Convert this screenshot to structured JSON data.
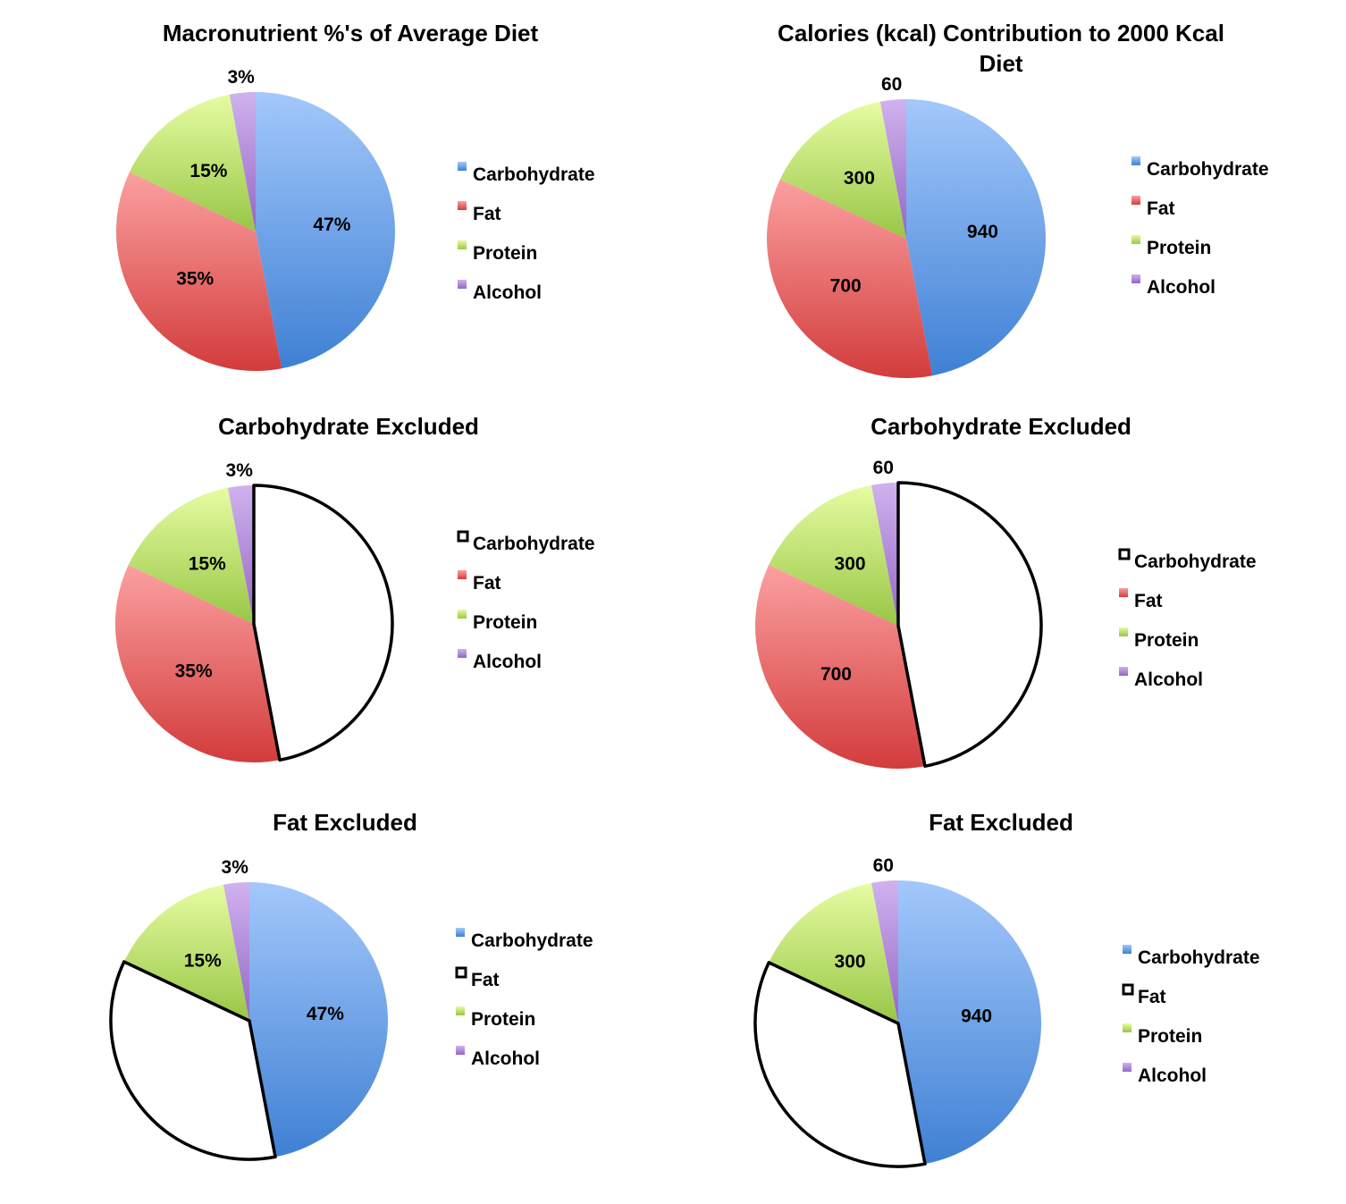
{
  "colors": {
    "Carbohydrate": [
      "#a3c8fb",
      "#3f80d4"
    ],
    "Fat": [
      "#fba0a0",
      "#d33c3c"
    ],
    "Protein": [
      "#e6fca2",
      "#98c646"
    ],
    "Alcohol": [
      "#d0b2ee",
      "#9466c4"
    ]
  },
  "chart_data": [
    {
      "type": "pie",
      "title": [
        "Macronutrient %'s of Average Diet"
      ],
      "categories": [
        "Carbohydrate",
        "Fat",
        "Protein",
        "Alcohol"
      ],
      "values": [
        47,
        35,
        15,
        3
      ],
      "labels": [
        "47%",
        "35%",
        "15%",
        "3%"
      ],
      "excluded": null,
      "legend": "right"
    },
    {
      "type": "pie",
      "title": [
        "Calories (kcal) Contribution to 2000 Kcal",
        "Diet"
      ],
      "categories": [
        "Carbohydrate",
        "Fat",
        "Protein",
        "Alcohol"
      ],
      "values": [
        940,
        700,
        300,
        60
      ],
      "labels": [
        "940",
        "700",
        "300",
        "60"
      ],
      "excluded": null,
      "legend": "right"
    },
    {
      "type": "pie",
      "title": [
        "Carbohydrate Excluded"
      ],
      "categories": [
        "Carbohydrate",
        "Fat",
        "Protein",
        "Alcohol"
      ],
      "values": [
        47,
        35,
        15,
        3
      ],
      "labels": [
        "",
        "35%",
        "15%",
        "3%"
      ],
      "excluded": "Carbohydrate",
      "legend": "right"
    },
    {
      "type": "pie",
      "title": [
        "Carbohydrate Excluded"
      ],
      "categories": [
        "Carbohydrate",
        "Fat",
        "Protein",
        "Alcohol"
      ],
      "values": [
        940,
        700,
        300,
        60
      ],
      "labels": [
        "",
        "700",
        "300",
        "60"
      ],
      "excluded": "Carbohydrate",
      "legend": "right"
    },
    {
      "type": "pie",
      "title": [
        "Fat Excluded"
      ],
      "categories": [
        "Carbohydrate",
        "Fat",
        "Protein",
        "Alcohol"
      ],
      "values": [
        47,
        35,
        15,
        3
      ],
      "labels": [
        "47%",
        "",
        "15%",
        "3%"
      ],
      "excluded": "Fat",
      "legend": "right"
    },
    {
      "type": "pie",
      "title": [
        "Fat Excluded"
      ],
      "categories": [
        "Carbohydrate",
        "Fat",
        "Protein",
        "Alcohol"
      ],
      "values": [
        940,
        700,
        300,
        60
      ],
      "labels": [
        "940",
        "",
        "300",
        "60"
      ],
      "excluded": "Fat",
      "legend": "right"
    }
  ]
}
